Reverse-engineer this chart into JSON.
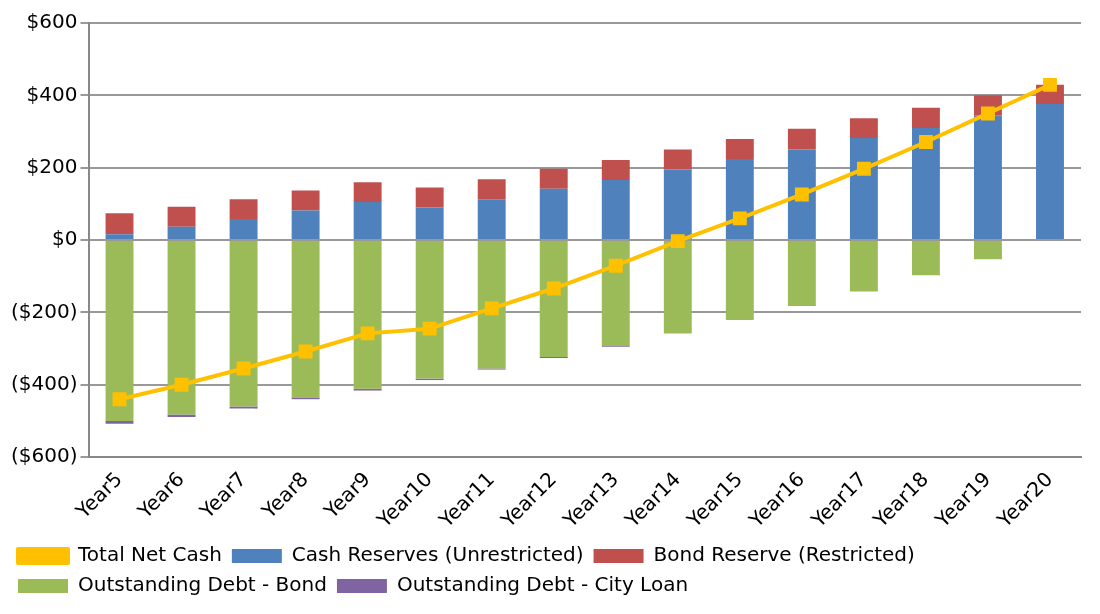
{
  "chart_data": {
    "type": "bar",
    "stacked": true,
    "categories": [
      "Year5",
      "Year6",
      "Year7",
      "Year8",
      "Year9",
      "Year10",
      "Year11",
      "Year12",
      "Year13",
      "Year14",
      "Year15",
      "Year16",
      "Year17",
      "Year18",
      "Year19",
      "Year20"
    ],
    "series": [
      {
        "name": "Cash Reserves (Unrestricted)",
        "color": "#4f81bd",
        "values": [
          16,
          37,
          58,
          82,
          105,
          90,
          113,
          142,
          166,
          195,
          224,
          250,
          282,
          310,
          345,
          376
        ]
      },
      {
        "name": "Bond Reserve (Restricted)",
        "color": "#c0504d",
        "values": [
          58,
          55,
          55,
          55,
          55,
          55,
          55,
          55,
          55,
          55,
          55,
          58,
          55,
          56,
          55,
          53
        ]
      },
      {
        "name": "Outstanding Debt - Bond",
        "color": "#9bbb59",
        "values": [
          -500,
          -482,
          -460,
          -435,
          -411,
          -383,
          -355,
          -323,
          -293,
          -258,
          -221,
          -182,
          -142,
          -97,
          -53,
          0
        ]
      },
      {
        "name": "Outstanding Debt - City Loan",
        "color": "#8064a2",
        "values": [
          -8,
          -7,
          -6,
          -5,
          -5,
          -4,
          -3,
          -3,
          -2,
          0,
          0,
          0,
          0,
          0,
          0,
          0
        ]
      },
      {
        "name": "Total Net Cash",
        "type": "line",
        "color": "#ffc000",
        "values": [
          -440,
          -400,
          -355,
          -308,
          -258,
          -245,
          -189,
          -134,
          -71,
          -3,
          60,
          126,
          197,
          271,
          350,
          429
        ]
      }
    ],
    "ylim": [
      -600,
      600
    ],
    "yticks": [
      {
        "value": -600,
        "label": "($600)"
      },
      {
        "value": -400,
        "label": "($400)"
      },
      {
        "value": -200,
        "label": "($200)"
      },
      {
        "value": 0,
        "label": "$0"
      },
      {
        "value": 200,
        "label": "$200"
      },
      {
        "value": 400,
        "label": "$400"
      },
      {
        "value": 600,
        "label": "$600"
      }
    ],
    "grid": "y",
    "legend": "bottom",
    "marker": "square"
  }
}
